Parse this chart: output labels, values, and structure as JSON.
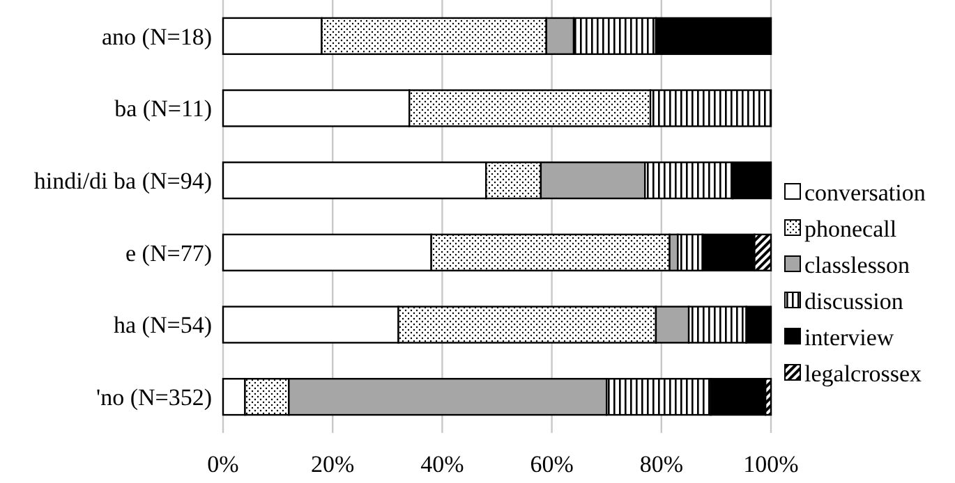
{
  "chart_data": {
    "type": "bar",
    "orientation": "horizontal",
    "stacked": true,
    "categories": [
      "ano (N=18)",
      "ba (N=11)",
      "hindi/di ba (N=94)",
      "e (N=77)",
      "ha (N=54)",
      "'no (N=352)"
    ],
    "series": [
      {
        "name": "conversation",
        "color": "#ffffff",
        "values": [
          18,
          34,
          48,
          38,
          32,
          4
        ]
      },
      {
        "name": "phonecall",
        "color": "#000000",
        "values": [
          41,
          44,
          10,
          43.5,
          47,
          8
        ]
      },
      {
        "name": "classlesson",
        "color": "#a6a6a6",
        "values": [
          5,
          0,
          19,
          1.5,
          6,
          58
        ]
      },
      {
        "name": "discussion",
        "color": "#000000",
        "values": [
          15,
          22,
          16,
          4.5,
          10.5,
          19
        ]
      },
      {
        "name": "interview",
        "color": "#000000",
        "values": [
          21,
          0,
          7,
          9.5,
          4.5,
          10
        ]
      },
      {
        "name": "legalcrossex",
        "color": "#000000",
        "values": [
          0,
          0,
          0,
          3,
          0,
          1
        ]
      }
    ],
    "xlim": [
      0,
      100
    ],
    "xticks": [
      {
        "value": 0,
        "label": "0%"
      },
      {
        "value": 20,
        "label": "20%"
      },
      {
        "value": 40,
        "label": "40%"
      },
      {
        "value": 60,
        "label": "60%"
      },
      {
        "value": 80,
        "label": "80%"
      },
      {
        "value": 100,
        "label": "100%"
      }
    ],
    "grid": "x",
    "legend": "right"
  }
}
